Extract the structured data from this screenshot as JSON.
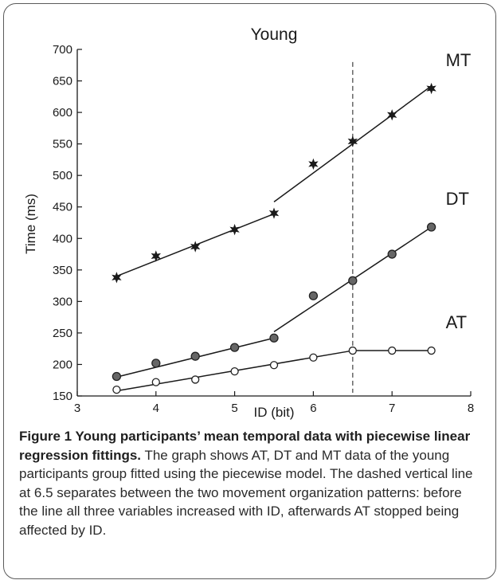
{
  "chart_data": {
    "type": "line",
    "title": "Young",
    "xlabel": "ID (bit)",
    "ylabel": "Time (ms)",
    "xlim": [
      3,
      8
    ],
    "ylim": [
      150,
      700
    ],
    "xticks": [
      3,
      4,
      5,
      6,
      7,
      8
    ],
    "yticks": [
      150,
      200,
      250,
      300,
      350,
      400,
      450,
      500,
      550,
      600,
      650,
      700
    ],
    "grid": false,
    "vline": {
      "x": 6.5,
      "style": "dashed"
    },
    "series": [
      {
        "name": "MT",
        "marker": "star",
        "x": [
          3.5,
          4,
          4.5,
          5,
          5.5,
          6,
          6.5,
          7,
          7.5
        ],
        "y": [
          338,
          372,
          387,
          414,
          440,
          518,
          554,
          596,
          638
        ],
        "fits": [
          {
            "x": [
              3.5,
              5.5
            ],
            "y": [
              340,
              439
            ]
          },
          {
            "x": [
              5.5,
              7.5
            ],
            "y": [
              458,
              642
            ]
          }
        ]
      },
      {
        "name": "DT",
        "marker": "filled-circle",
        "x": [
          3.5,
          4,
          4.5,
          5,
          5.5,
          6,
          6.5,
          7,
          7.5
        ],
        "y": [
          181,
          202,
          213,
          227,
          242,
          309,
          333,
          375,
          418
        ],
        "fits": [
          {
            "x": [
              3.5,
              5.5
            ],
            "y": [
              180,
              242
            ]
          },
          {
            "x": [
              5.5,
              7.5
            ],
            "y": [
              252,
              418
            ]
          }
        ]
      },
      {
        "name": "AT",
        "marker": "open-circle",
        "x": [
          3.5,
          4,
          4.5,
          5,
          5.5,
          6,
          6.5,
          7,
          7.5
        ],
        "y": [
          160,
          172,
          176,
          189,
          199,
          211,
          222,
          222,
          222
        ],
        "fits": [
          {
            "x": [
              3.5,
              6.5
            ],
            "y": [
              158,
              222
            ]
          },
          {
            "x": [
              6.5,
              7.5
            ],
            "y": [
              222,
              222
            ]
          }
        ]
      }
    ]
  },
  "caption": {
    "title": "Figure 1 Young participants’ mean temporal data with piecewise linear regression fittings.",
    "body": "The graph shows AT, DT and MT data of the young participants group fitted using the piecewise model. The dashed vertical line at 6.5 separates between the two movement organization patterns: before the line all three variables increased with ID, afterwards AT stopped being affected by ID."
  },
  "colors": {
    "axis": "#1a1a1a",
    "fit_line": "#1a1a1a",
    "dashed_line": "#666666",
    "filled_marker": "#666666",
    "star_marker": "#1a1a1a"
  }
}
